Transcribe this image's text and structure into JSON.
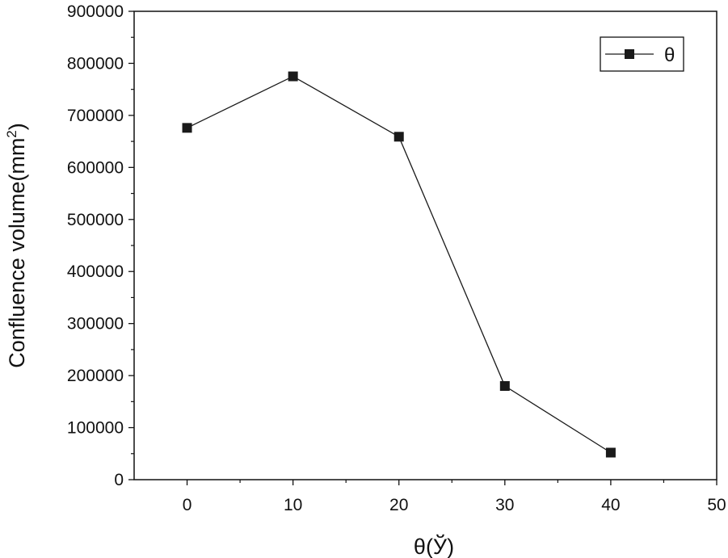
{
  "chart_data": {
    "type": "line",
    "title": "",
    "xlabel": "θ(Ў)",
    "ylabel_main": "Confluence volume(mm",
    "ylabel_sup": "2",
    "ylabel_close": ")",
    "xlim": [
      -5,
      50
    ],
    "ylim": [
      0,
      900000
    ],
    "xticks": [
      0,
      10,
      20,
      30,
      40,
      50
    ],
    "yticks": [
      0,
      100000,
      200000,
      300000,
      400000,
      500000,
      600000,
      700000,
      800000,
      900000
    ],
    "legend_position": "top-right",
    "grid": false,
    "series": [
      {
        "name": "θ",
        "marker": "square",
        "color": "#1a1a1a",
        "x": [
          0,
          10,
          20,
          30,
          40
        ],
        "y": [
          676000,
          775000,
          659000,
          180000,
          52000
        ]
      }
    ]
  }
}
